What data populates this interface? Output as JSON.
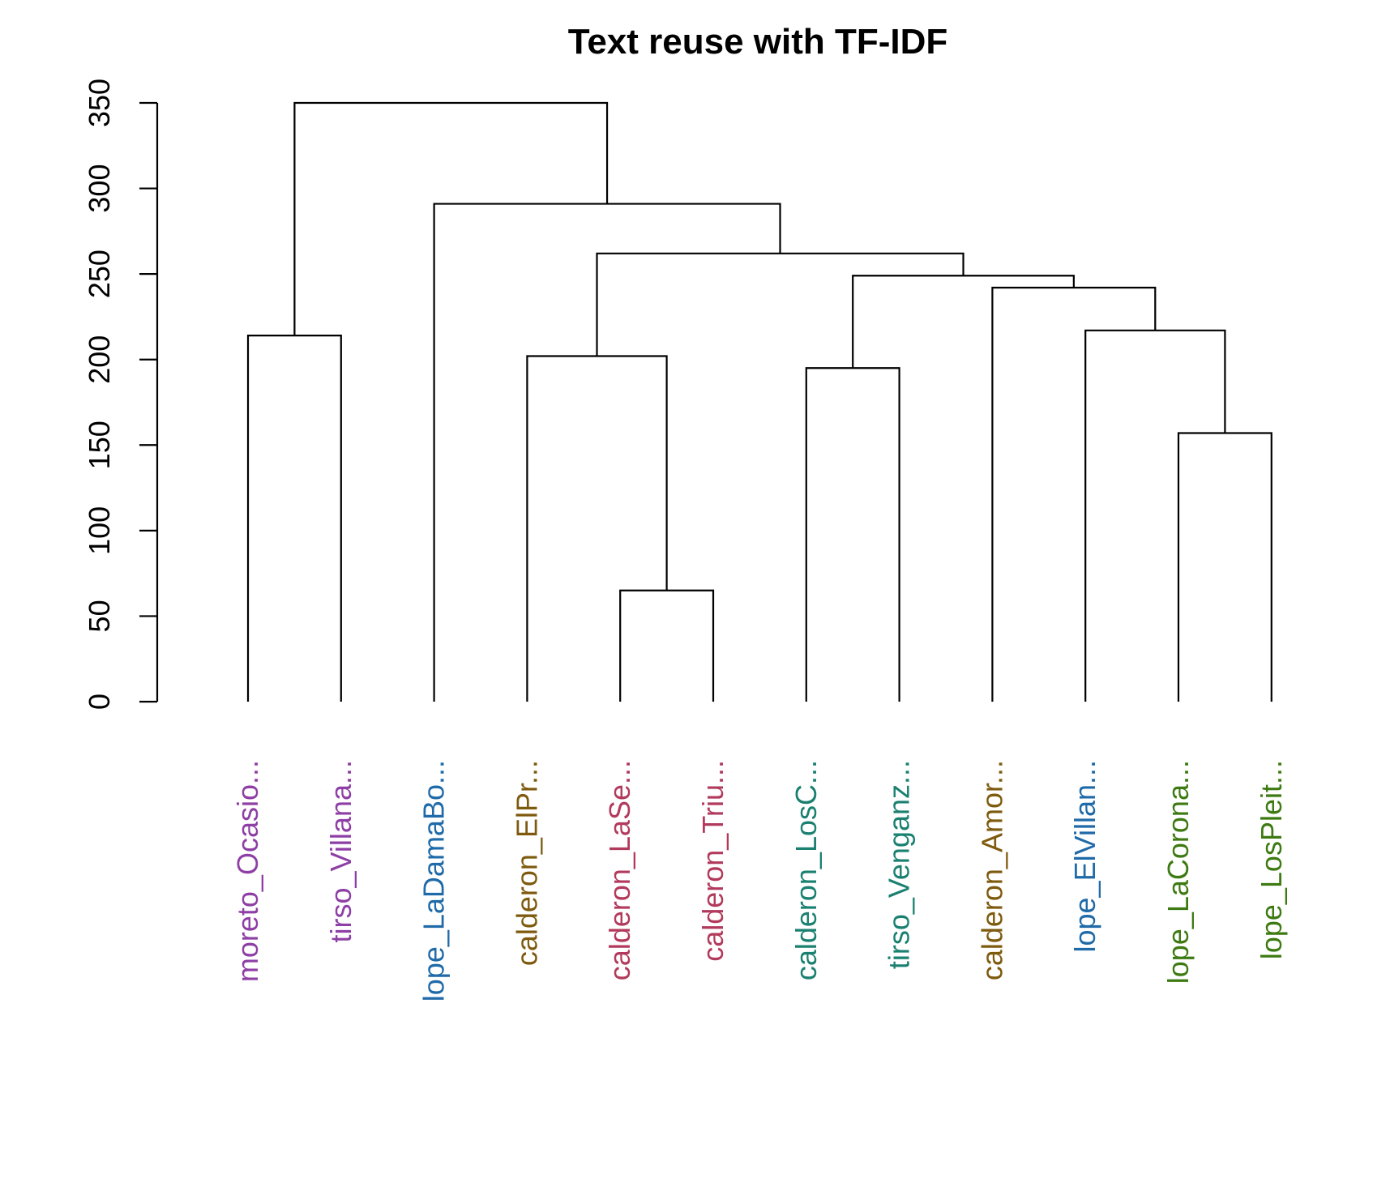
{
  "chart_data": {
    "type": "dendrogram",
    "title": "Text reuse with TF-IDF",
    "xlabel": "",
    "ylabel": "",
    "ylim": [
      0,
      350
    ],
    "y_ticks": [
      0,
      50,
      100,
      150,
      200,
      250,
      300,
      350
    ],
    "grid": false,
    "leaves": [
      {
        "label": "moreto_Ocasio...",
        "color": "#8e3fa5"
      },
      {
        "label": "tirso_Villana...",
        "color": "#8e3fa5"
      },
      {
        "label": "lope_LaDamaBo...",
        "color": "#1f6aa8"
      },
      {
        "label": "calderon_ElPr...",
        "color": "#7e5a0e"
      },
      {
        "label": "calderon_LaSe...",
        "color": "#b23a5c"
      },
      {
        "label": "calderon_Triu...",
        "color": "#b23a5c"
      },
      {
        "label": "calderon_LosC...",
        "color": "#1a8070"
      },
      {
        "label": "tirso_Venganz...",
        "color": "#1a8070"
      },
      {
        "label": "calderon_Amor...",
        "color": "#7e5a0e"
      },
      {
        "label": "lope_ElVillan...",
        "color": "#1f6aa8"
      },
      {
        "label": "lope_LaCorona...",
        "color": "#3d7a12"
      },
      {
        "label": "lope_LosPleit...",
        "color": "#3d7a12"
      }
    ],
    "merges": [
      {
        "left": 4,
        "right": 5,
        "height": 65
      },
      {
        "left": 10,
        "right": 11,
        "height": 157
      },
      {
        "left": 6,
        "right": 7,
        "height": 195
      },
      {
        "left": 3,
        "right": "m0",
        "height": 202
      },
      {
        "left": 0,
        "right": 1,
        "height": 214
      },
      {
        "left": 9,
        "right": "m1",
        "height": 217
      },
      {
        "left": 8,
        "right": "m5",
        "height": 242
      },
      {
        "left": "m2",
        "right": "m6",
        "height": 249
      },
      {
        "left": "m3",
        "right": "m7",
        "height": 262
      },
      {
        "left": 2,
        "right": "m8",
        "height": 291
      },
      {
        "left": "m4",
        "right": "m9",
        "height": 350
      }
    ]
  }
}
